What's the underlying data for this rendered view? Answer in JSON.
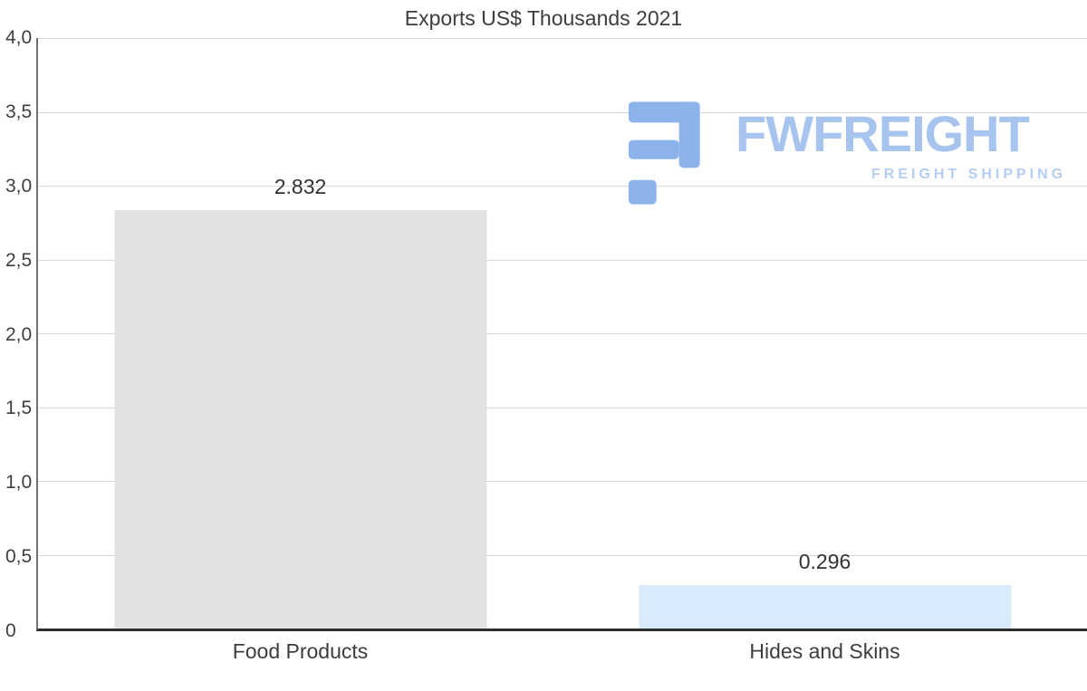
{
  "chart_data": {
    "type": "bar",
    "title": "Exports US$ Thousands 2021",
    "categories": [
      "Food Products",
      "Hides and Skins"
    ],
    "values": [
      2.832,
      0.296
    ],
    "value_labels": [
      "2.832",
      "0.296"
    ],
    "bar_colors": [
      "#e2e2e2",
      "#d8eafc"
    ],
    "ylim": [
      0,
      4
    ],
    "ytick_labels": [
      "4,0",
      "3,5",
      "3,0",
      "2,5",
      "2,0",
      "1,5",
      "1,0",
      "0,5",
      "0"
    ],
    "grid": true,
    "legend": false,
    "xlabel": "",
    "ylabel": ""
  },
  "logo": {
    "brand": "FWFREIGHT",
    "tagline": "FREIGHT SHIPPING",
    "color": "#a7c4ee",
    "icon_color": "#8cb4ea"
  }
}
